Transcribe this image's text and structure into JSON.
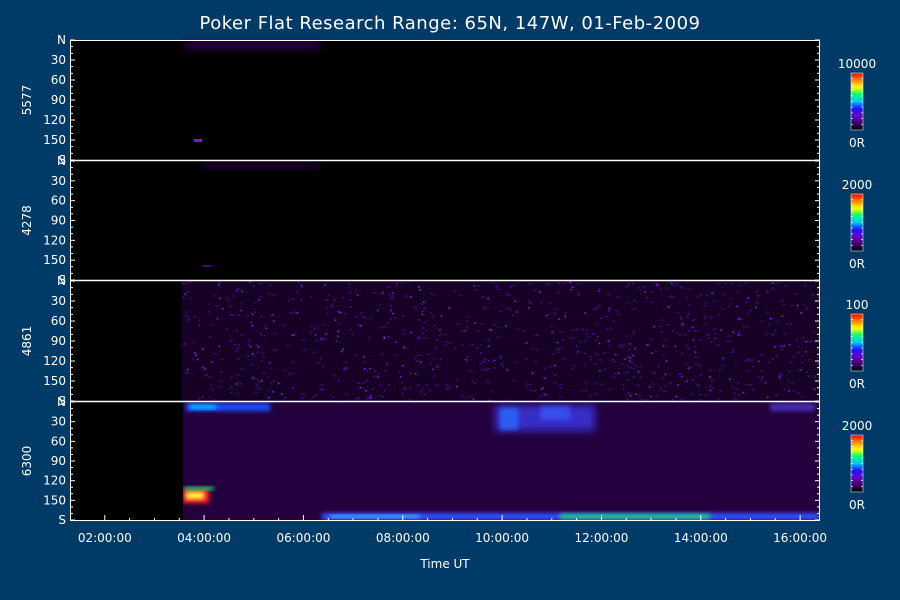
{
  "chart_data": {
    "type": "heatmap",
    "title": "Poker Flat Research Range: 65N, 147W, 01-Feb-2009",
    "xlabel": "Time UT",
    "x_ticks": [
      "02:00:00",
      "04:00:00",
      "06:00:00",
      "08:00:00",
      "10:00:00",
      "12:00:00",
      "14:00:00",
      "16:00:00"
    ],
    "xlim_hours": [
      1.3,
      16.4
    ],
    "y_ticks": [
      "N",
      "30",
      "60",
      "90",
      "120",
      "150",
      "S"
    ],
    "y_values": [
      0,
      30,
      60,
      90,
      120,
      150,
      180
    ],
    "data_start_hours": 3.55,
    "colormap": [
      "#000000",
      "#3c0064",
      "#6a00c8",
      "#1a1aff",
      "#00c8ff",
      "#00ff78",
      "#ffff00",
      "#ff8000",
      "#ff0000"
    ],
    "panels": [
      {
        "wavelength": "5577",
        "scale_max": "10000",
        "scale_min": "0R",
        "median_R": 0,
        "unit_max": 10000
      },
      {
        "wavelength": "4278",
        "scale_max": "2000",
        "scale_min": "0R",
        "median_R": 0,
        "unit_max": 2000
      },
      {
        "wavelength": "4861",
        "scale_max": "100",
        "scale_min": "0R",
        "median_R": 6,
        "unit_max": 100
      },
      {
        "wavelength": "6300",
        "scale_max": "2000",
        "scale_min": "0R",
        "median_R": 280,
        "unit_max": 2000
      }
    ],
    "grid": false,
    "legend": "right"
  }
}
